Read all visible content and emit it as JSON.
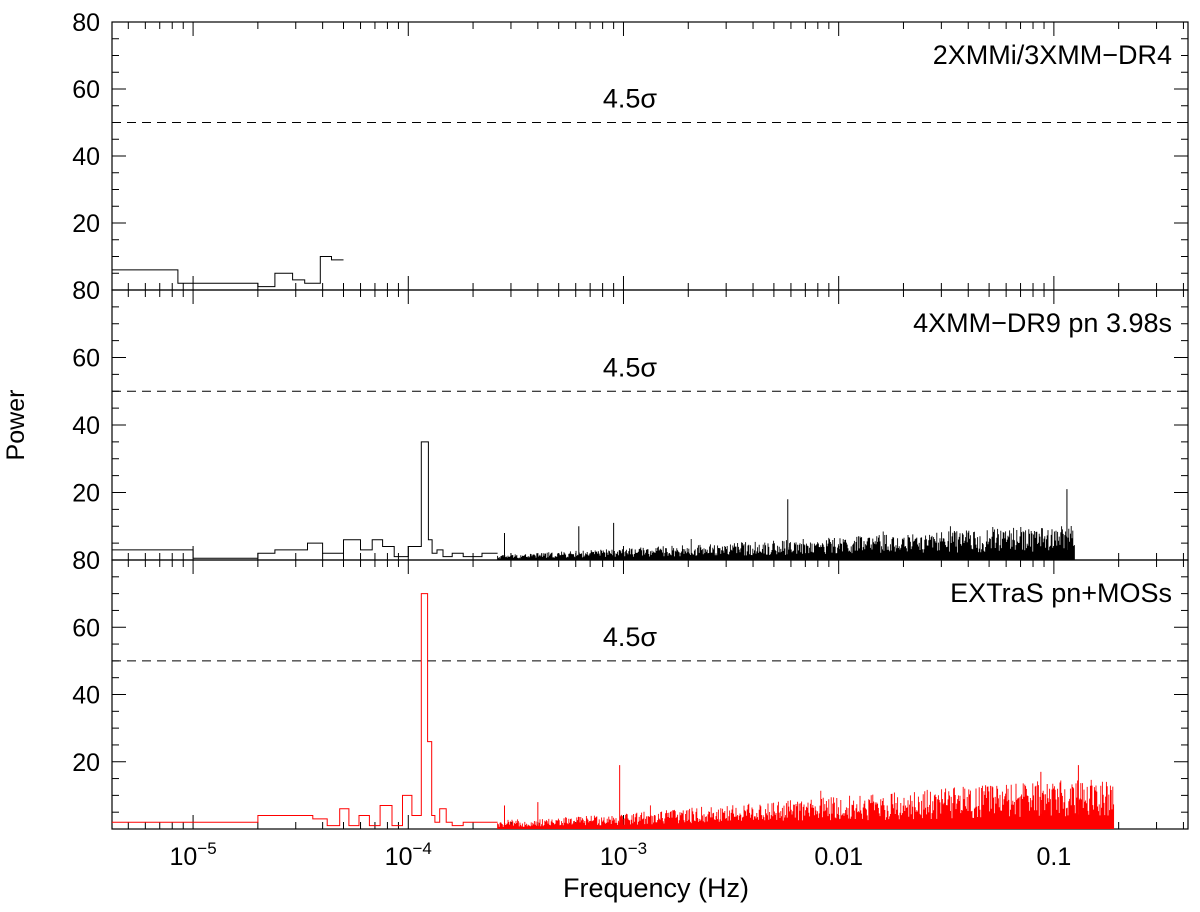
{
  "chart_data": {
    "type": "line",
    "xlabel": "Frequency (Hz)",
    "ylabel": "Power",
    "xscale": "log",
    "xlim": [
      4.2e-06,
      0.42
    ],
    "x_tick_labels": [
      {
        "value": 1e-05,
        "base": "10",
        "exp": "−5"
      },
      {
        "value": 0.0001,
        "base": "10",
        "exp": "−4"
      },
      {
        "value": 0.001,
        "base": "10",
        "exp": "−3"
      },
      {
        "value": 0.01,
        "base": "0.01",
        "exp": ""
      },
      {
        "value": 0.1,
        "base": "0.1",
        "exp": ""
      }
    ],
    "panels": [
      {
        "label": "2XMMi/3XMM−DR4",
        "color": "#000000",
        "ylim": [
          0,
          80
        ],
        "y_tick_labels": [
          "20",
          "40",
          "60",
          "80"
        ],
        "threshold": {
          "value": 50,
          "label": "4.5σ"
        },
        "steps": {
          "edges": [
            4.2e-06,
            8.5e-06,
            1.2e-05,
            2e-05,
            2.4e-05,
            2.9e-05,
            3.3e-05,
            3.9e-05,
            4.4e-05,
            5e-05
          ],
          "values": [
            6,
            2,
            2,
            1,
            5,
            3,
            2,
            10,
            9
          ]
        }
      },
      {
        "label": "4XMM−DR9 pn 3.98s",
        "color": "#000000",
        "ylim": [
          0,
          80
        ],
        "y_tick_labels": [
          "20",
          "40",
          "60",
          "80"
        ],
        "threshold": {
          "value": 50,
          "label": "4.5σ"
        },
        "steps": {
          "edges": [
            4.2e-06,
            1e-05,
            2e-05,
            2.4e-05,
            3.4e-05,
            4e-05,
            5e-05,
            6e-05,
            6.8e-05,
            7.6e-05,
            8.6e-05,
            0.0001,
            0.000115,
            0.000124,
            0.000129,
            0.000136,
            0.000145,
            0.00016,
            0.00018,
            0.00022,
            0.00026
          ],
          "values": [
            3,
            0.5,
            2,
            3,
            5,
            2,
            6,
            3,
            6,
            4,
            1,
            4,
            35,
            6,
            2,
            3,
            1,
            2,
            1,
            2
          ]
        },
        "noise": {
          "start": 0.00026,
          "end": 0.125,
          "peaks": [
            {
              "x": 0.00028,
              "y": 8
            },
            {
              "x": 0.00062,
              "y": 10
            },
            {
              "x": 0.0009,
              "y": 11
            },
            {
              "x": 0.0058,
              "y": 18
            },
            {
              "x": 0.115,
              "y": 21
            }
          ]
        }
      },
      {
        "label": "EXTraS pn+MOSs",
        "color": "#ff0000",
        "ylim": [
          0,
          80
        ],
        "y_tick_labels": [
          "20",
          "40",
          "60",
          "80"
        ],
        "threshold": {
          "value": 50,
          "label": "4.5σ"
        },
        "steps": {
          "edges": [
            4.2e-06,
            1e-05,
            2e-05,
            2.6e-05,
            3.6e-05,
            4.2e-05,
            4.8e-05,
            5.3e-05,
            5.9e-05,
            6.6e-05,
            7.4e-05,
            8.4e-05,
            9.4e-05,
            0.000104,
            0.000115,
            0.000123,
            0.0001285,
            0.000133,
            0.00014,
            0.00015,
            0.00016,
            0.00018,
            0.00022,
            0.00026
          ],
          "values": [
            2,
            2,
            4,
            4,
            3,
            1,
            6,
            1,
            4,
            1,
            7,
            1,
            10,
            4,
            70,
            26,
            4,
            2,
            6,
            2,
            1,
            2,
            2
          ]
        },
        "noise": {
          "start": 0.00026,
          "end": 0.19,
          "peaks": [
            {
              "x": 0.00028,
              "y": 7
            },
            {
              "x": 0.0004,
              "y": 8
            },
            {
              "x": 0.00096,
              "y": 19
            },
            {
              "x": 0.087,
              "y": 17
            },
            {
              "x": 0.13,
              "y": 19
            }
          ]
        }
      }
    ]
  }
}
